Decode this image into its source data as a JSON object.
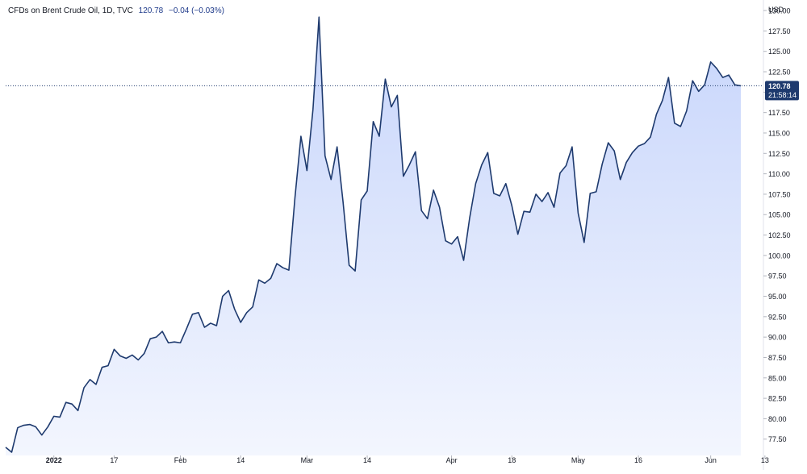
{
  "legend": {
    "symbol": "CFDs on Brent Crude Oil, 1D, TVC",
    "last": "120.78",
    "change": "−0.04 (−0.03%)"
  },
  "price_tag": {
    "value": "120.78",
    "countdown": "21:58:14"
  },
  "chart_data": {
    "type": "area",
    "currency_label": "USD",
    "ylim": [
      75.5,
      130.5
    ],
    "y_ticks": [
      "77.50",
      "80.00",
      "82.50",
      "85.00",
      "87.50",
      "90.00",
      "92.50",
      "95.00",
      "97.50",
      "100.00",
      "102.50",
      "105.00",
      "107.50",
      "110.00",
      "112.50",
      "115.00",
      "117.50",
      "120.00",
      "122.50",
      "125.00",
      "127.50",
      "130.00"
    ],
    "x_ticks": [
      {
        "label": "2022",
        "index": 8,
        "bold": true
      },
      {
        "label": "17",
        "index": 18
      },
      {
        "label": "Feb",
        "index": 29
      },
      {
        "label": "14",
        "index": 39
      },
      {
        "label": "Mar",
        "index": 50
      },
      {
        "label": "14",
        "index": 60
      },
      {
        "label": "Apr",
        "index": 74
      },
      {
        "label": "18",
        "index": 84
      },
      {
        "label": "May",
        "index": 95
      },
      {
        "label": "16",
        "index": 105
      },
      {
        "label": "Jun",
        "index": 117
      },
      {
        "label": "13",
        "index": 126
      }
    ],
    "last_value": 120.78,
    "colors": {
      "line": "#1e3a6e",
      "fill_top": "#c7d5fb",
      "fill_bottom": "#f3f6fe",
      "tag": "#1e3a6e"
    },
    "values": [
      76.5,
      75.9,
      78.9,
      79.2,
      79.3,
      79.0,
      78.0,
      79.0,
      80.3,
      80.2,
      82.0,
      81.8,
      81.0,
      83.8,
      84.8,
      84.2,
      86.3,
      86.5,
      88.5,
      87.7,
      87.4,
      87.8,
      87.2,
      88.0,
      89.8,
      90.0,
      90.7,
      89.3,
      89.4,
      89.3,
      91.0,
      92.8,
      93.0,
      91.2,
      91.7,
      91.4,
      95.0,
      95.7,
      93.4,
      91.8,
      93.0,
      93.7,
      97.0,
      96.6,
      97.2,
      99.0,
      98.5,
      98.2,
      107.0,
      114.6,
      110.4,
      117.9,
      129.2,
      112.2,
      109.3,
      113.3,
      106.5,
      98.8,
      98.1,
      106.8,
      107.9,
      116.4,
      114.6,
      121.6,
      118.2,
      119.6,
      109.7,
      111.1,
      112.7,
      105.5,
      104.5,
      108.0,
      105.9,
      101.8,
      101.4,
      102.3,
      99.4,
      104.6,
      108.8,
      111.1,
      112.6,
      107.6,
      107.3,
      108.8,
      106.1,
      102.6,
      105.4,
      105.3,
      107.5,
      106.6,
      107.7,
      105.9,
      110.1,
      111.0,
      113.3,
      105.2,
      101.6,
      107.6,
      107.8,
      111.2,
      113.8,
      112.8,
      109.3,
      111.4,
      112.6,
      113.4,
      113.7,
      114.5,
      117.3,
      119.0,
      121.8,
      116.2,
      115.8,
      117.7,
      121.4,
      120.1,
      120.9,
      123.7,
      122.9,
      121.8,
      122.1,
      120.9,
      120.78
    ]
  }
}
